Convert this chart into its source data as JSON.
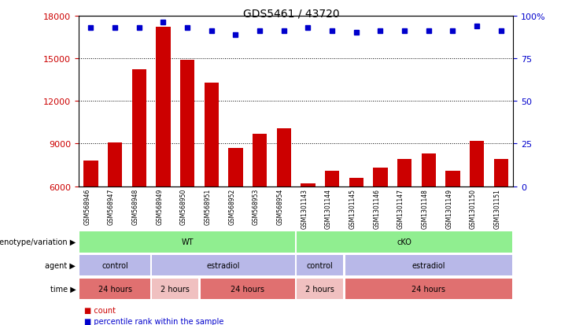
{
  "title": "GDS5461 / 43720",
  "samples": [
    "GSM568946",
    "GSM568947",
    "GSM568948",
    "GSM568949",
    "GSM568950",
    "GSM568951",
    "GSM568952",
    "GSM568953",
    "GSM568954",
    "GSM1301143",
    "GSM1301144",
    "GSM1301145",
    "GSM1301146",
    "GSM1301147",
    "GSM1301148",
    "GSM1301149",
    "GSM1301150",
    "GSM1301151"
  ],
  "counts": [
    7800,
    9100,
    14200,
    17200,
    14900,
    13300,
    8700,
    9700,
    10100,
    6200,
    7100,
    6600,
    7300,
    7900,
    8300,
    7100,
    9200,
    7900
  ],
  "percentile": [
    93,
    93,
    93,
    96,
    93,
    91,
    89,
    91,
    91,
    93,
    91,
    90,
    91,
    91,
    91,
    91,
    94,
    91
  ],
  "ylim_left": [
    6000,
    18000
  ],
  "ylim_right": [
    0,
    100
  ],
  "yticks_left": [
    6000,
    9000,
    12000,
    15000,
    18000
  ],
  "yticks_right": [
    0,
    25,
    50,
    75,
    100
  ],
  "bar_color": "#cc0000",
  "dot_color": "#0000cc",
  "background_color": "#ffffff",
  "annotation_rows": [
    {
      "label": "genotype/variation",
      "segments": [
        {
          "text": "WT",
          "start": 0,
          "end": 9,
          "color": "#90ee90"
        },
        {
          "text": "cKO",
          "start": 9,
          "end": 18,
          "color": "#90ee90"
        }
      ]
    },
    {
      "label": "agent",
      "segments": [
        {
          "text": "control",
          "start": 0,
          "end": 3,
          "color": "#b8b8e8"
        },
        {
          "text": "estradiol",
          "start": 3,
          "end": 9,
          "color": "#b8b8e8"
        },
        {
          "text": "control",
          "start": 9,
          "end": 11,
          "color": "#b8b8e8"
        },
        {
          "text": "estradiol",
          "start": 11,
          "end": 18,
          "color": "#b8b8e8"
        }
      ]
    },
    {
      "label": "time",
      "segments": [
        {
          "text": "24 hours",
          "start": 0,
          "end": 3,
          "color": "#e07070"
        },
        {
          "text": "2 hours",
          "start": 3,
          "end": 5,
          "color": "#f0c0c0"
        },
        {
          "text": "24 hours",
          "start": 5,
          "end": 9,
          "color": "#e07070"
        },
        {
          "text": "2 hours",
          "start": 9,
          "end": 11,
          "color": "#f0c0c0"
        },
        {
          "text": "24 hours",
          "start": 11,
          "end": 18,
          "color": "#e07070"
        }
      ]
    }
  ]
}
